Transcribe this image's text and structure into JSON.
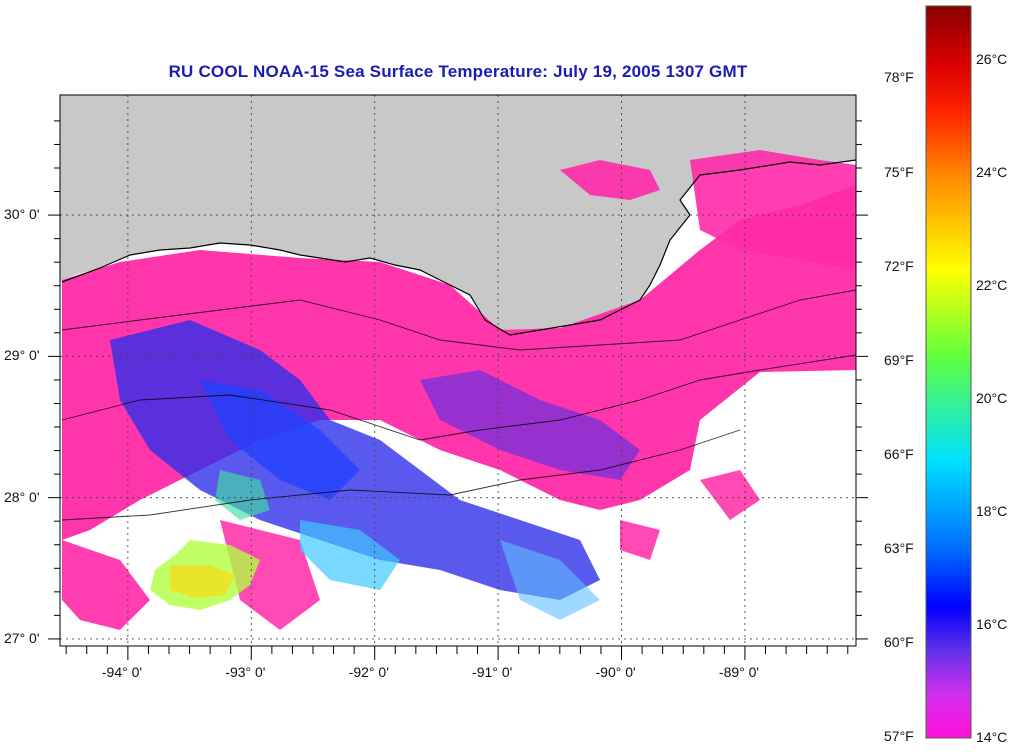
{
  "title": "RU COOL  NOAA-15  Sea Surface Temperature:  July 19, 2005 1307 GMT",
  "map": {
    "land_color": "#c8c8c8",
    "lat_labels": [
      "30° 0'",
      "29° 0'",
      "28° 0'",
      "27° 0'"
    ],
    "lon_labels": [
      "-94° 0'",
      "-93° 0'",
      "-92° 0'",
      "-91° 0'",
      "-90° 0'",
      "-89° 0'"
    ],
    "lat_values": [
      30,
      29,
      28,
      27
    ],
    "lon_values": [
      -94,
      -93,
      -92,
      -91,
      -90,
      -89
    ],
    "lat_range": [
      26.95,
      30.85
    ],
    "lon_range": [
      -94.55,
      -88.1
    ]
  },
  "colorbar": {
    "fahrenheit_labels": [
      "78°F",
      "75°F",
      "72°F",
      "69°F",
      "66°F",
      "63°F",
      "60°F",
      "57°F"
    ],
    "celsius_labels": [
      "26°C",
      "24°C",
      "22°C",
      "20°C",
      "18°C",
      "16°C",
      "14°C"
    ],
    "colors": [
      "#8b0000",
      "#ff0000",
      "#ff8800",
      "#ffff00",
      "#40ff60",
      "#00ffff",
      "#0060ff",
      "#0000ff",
      "#8040e0",
      "#ff30ff",
      "#ff00c8"
    ]
  }
}
